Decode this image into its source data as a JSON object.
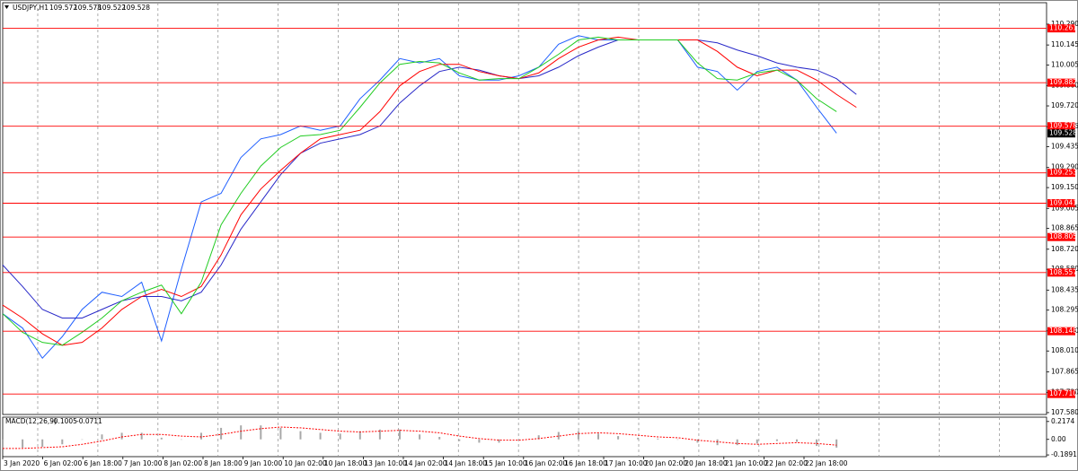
{
  "chart_data": [
    {
      "type": "line",
      "symbol": "USDJPY,H1",
      "ohlc": [
        109.572,
        109.578,
        109.522,
        109.528
      ],
      "ylim": [
        107.567,
        110.44
      ],
      "yticks": [
        {
          "value": 110.29,
          "label": "110.290"
        },
        110.145,
        110.005,
        {
          "value": 109.86,
          "label": "109.860"
        },
        {
          "value": 109.72,
          "label": "109.720"
        },
        109.575,
        109.435,
        {
          "value": 109.29,
          "label": "109.290"
        },
        {
          "value": 109.15,
          "label": "109.150"
        },
        109.005,
        108.865,
        {
          "value": 108.72,
          "label": "108.720"
        },
        {
          "value": 108.58,
          "label": "108.580"
        },
        108.435,
        108.295,
        {
          "value": 108.15,
          "label": "108.150"
        },
        {
          "value": 108.01,
          "label": "108.010"
        },
        107.865,
        {
          "value": 107.72,
          "label": "107.720"
        },
        {
          "value": 107.58,
          "label": "107.580"
        }
      ],
      "levels": [
        110.261,
        109.882,
        109.578,
        109.253,
        109.041,
        108.805,
        108.557,
        108.148,
        {
          "value": 107.71,
          "label": "107.710"
        }
      ],
      "level_color": "#ff0000",
      "series": [
        {
          "color": "#1f5fff",
          "values": [
            108.27,
            108.17,
            107.96,
            108.11,
            108.3,
            108.42,
            108.39,
            108.49,
            108.08,
            108.58,
            109.05,
            109.11,
            109.36,
            109.49,
            109.52,
            109.58,
            109.55,
            109.58,
            109.77,
            109.9,
            110.05,
            110.02,
            110.05,
            109.93,
            109.9,
            109.9,
            109.93,
            109.99,
            110.15,
            110.21,
            110.18,
            110.18,
            110.18,
            110.18,
            110.18,
            109.99,
            109.96,
            109.83,
            109.96,
            109.99,
            109.9,
            109.71,
            109.53,
            null
          ]
        },
        {
          "color": "#2828c8",
          "values": [
            108.61,
            108.46,
            108.3,
            108.24,
            108.24,
            108.3,
            108.36,
            108.39,
            108.39,
            108.36,
            108.42,
            108.61,
            108.86,
            109.05,
            109.24,
            109.39,
            109.46,
            109.49,
            109.52,
            109.58,
            109.74,
            109.86,
            109.96,
            109.99,
            109.97,
            109.93,
            109.91,
            109.93,
            109.99,
            110.07,
            110.13,
            110.18,
            110.18,
            110.18,
            110.18,
            110.18,
            110.16,
            110.11,
            110.07,
            110.02,
            109.99,
            109.97,
            109.91,
            109.8
          ]
        },
        {
          "color": "#ff0000",
          "values": [
            108.33,
            108.24,
            108.13,
            108.05,
            108.07,
            108.17,
            108.3,
            108.39,
            108.44,
            108.39,
            108.46,
            108.68,
            108.96,
            109.14,
            109.27,
            109.39,
            109.49,
            109.52,
            109.55,
            109.68,
            109.86,
            109.96,
            110.01,
            110.01,
            109.96,
            109.93,
            109.91,
            109.95,
            110.05,
            110.13,
            110.18,
            110.2,
            110.18,
            110.18,
            110.18,
            110.18,
            110.1,
            109.99,
            109.93,
            109.97,
            109.97,
            109.9,
            109.8,
            109.71
          ]
        },
        {
          "color": "#22cc22",
          "values": [
            108.27,
            108.14,
            108.07,
            108.05,
            108.14,
            108.24,
            108.36,
            108.42,
            108.47,
            108.27,
            108.49,
            108.89,
            109.11,
            109.3,
            109.43,
            109.51,
            109.52,
            109.55,
            109.71,
            109.88,
            110.01,
            110.03,
            110.02,
            109.95,
            109.9,
            109.91,
            109.91,
            109.99,
            110.08,
            110.18,
            110.2,
            110.18,
            110.18,
            110.18,
            110.18,
            110.02,
            109.91,
            109.9,
            109.95,
            109.97,
            109.9,
            109.77,
            109.68,
            null
          ]
        }
      ]
    },
    {
      "type": "macd",
      "title": "MACD(12,26,9)",
      "header_values": [
        -0.1005,
        -0.0711
      ],
      "ylim": [
        -0.21,
        0.27
      ],
      "yticks": [
        0.2174,
        {
          "value": 0,
          "label": "0.00"
        },
        -0.1891
      ],
      "series": [
        {
          "color": "#a8a8a8",
          "style": "histogram",
          "values": [
            -0.12,
            -0.1,
            -0.09,
            -0.06,
            0.0,
            0.06,
            0.08,
            0.08,
            0.02,
            0.0,
            0.08,
            0.14,
            0.17,
            0.17,
            0.14,
            0.1,
            0.08,
            0.07,
            0.1,
            0.12,
            0.12,
            0.06,
            0.03,
            -0.02,
            -0.04,
            -0.04,
            0.0,
            0.05,
            0.09,
            0.1,
            0.07,
            0.04,
            0.02,
            0.01,
            0.0,
            -0.04,
            -0.07,
            -0.07,
            -0.05,
            -0.02,
            -0.03,
            -0.08,
            -0.1,
            null
          ]
        },
        {
          "color": "#ff0000",
          "style": "dotted",
          "values": [
            -0.11,
            -0.11,
            -0.1,
            -0.09,
            -0.06,
            -0.02,
            0.03,
            0.06,
            0.06,
            0.04,
            0.03,
            0.06,
            0.1,
            0.13,
            0.15,
            0.14,
            0.12,
            0.1,
            0.09,
            0.1,
            0.11,
            0.1,
            0.08,
            0.04,
            0.01,
            -0.01,
            -0.01,
            0.01,
            0.04,
            0.07,
            0.08,
            0.07,
            0.05,
            0.03,
            0.02,
            -0.01,
            -0.03,
            -0.05,
            -0.06,
            -0.05,
            -0.04,
            -0.05,
            -0.07,
            null
          ]
        }
      ],
      "x_tick_labels": [
        "3 Jan 2020",
        "6 Jan 02:00",
        "6 Jan 18:00",
        "7 Jan 10:00",
        "8 Jan 02:00",
        "8 Jan 18:00",
        "9 Jan 10:00",
        "10 Jan 02:00",
        "10 Jan 18:00",
        "13 Jan 10:00",
        "14 Jan 02:00",
        "14 Jan 18:00",
        "15 Jan 10:00",
        "16 Jan 02:00",
        "16 Jan 18:00",
        "17 Jan 10:00",
        "20 Jan 02:00",
        "20 Jan 18:00",
        "21 Jan 10:00",
        "22 Jan 02:00",
        "22 Jan 18:00"
      ]
    }
  ]
}
